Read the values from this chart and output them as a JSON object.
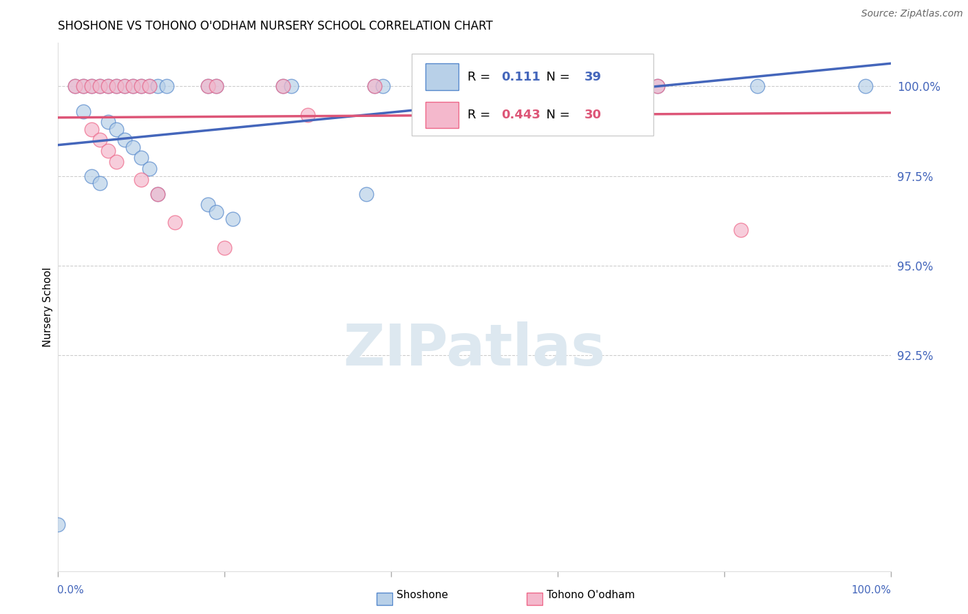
{
  "title": "SHOSHONE VS TOHONO O'ODHAM NURSERY SCHOOL CORRELATION CHART",
  "source": "Source: ZipAtlas.com",
  "ylabel": "Nursery School",
  "ylabel_right_labels": [
    "100.0%",
    "97.5%",
    "95.0%",
    "92.5%"
  ],
  "ylabel_right_values": [
    1.0,
    0.975,
    0.95,
    0.925
  ],
  "xmin": 0.0,
  "xmax": 1.0,
  "ymin": 0.865,
  "ymax": 1.012,
  "legend_blue_R": "0.111",
  "legend_blue_N": "39",
  "legend_pink_R": "0.443",
  "legend_pink_N": "30",
  "shoshone_color": "#b8d0e8",
  "tohono_color": "#f4b8cc",
  "shoshone_edge": "#5588cc",
  "tohono_edge": "#ee6688",
  "trendline_blue": "#4466bb",
  "trendline_pink": "#dd5577",
  "watermark": "ZIPatlas",
  "shoshone_points": [
    [
      0.02,
      1.0
    ],
    [
      0.03,
      1.0
    ],
    [
      0.04,
      1.0
    ],
    [
      0.05,
      1.0
    ],
    [
      0.06,
      1.0
    ],
    [
      0.07,
      1.0
    ],
    [
      0.08,
      1.0
    ],
    [
      0.09,
      1.0
    ],
    [
      0.1,
      1.0
    ],
    [
      0.11,
      1.0
    ],
    [
      0.12,
      1.0
    ],
    [
      0.13,
      1.0
    ],
    [
      0.18,
      1.0
    ],
    [
      0.19,
      1.0
    ],
    [
      0.27,
      1.0
    ],
    [
      0.28,
      1.0
    ],
    [
      0.38,
      1.0
    ],
    [
      0.39,
      1.0
    ],
    [
      0.53,
      1.0
    ],
    [
      0.65,
      1.0
    ],
    [
      0.66,
      1.0
    ],
    [
      0.72,
      1.0
    ],
    [
      0.84,
      1.0
    ],
    [
      0.97,
      1.0
    ],
    [
      0.03,
      0.993
    ],
    [
      0.06,
      0.99
    ],
    [
      0.07,
      0.988
    ],
    [
      0.08,
      0.985
    ],
    [
      0.09,
      0.983
    ],
    [
      0.1,
      0.98
    ],
    [
      0.11,
      0.977
    ],
    [
      0.04,
      0.975
    ],
    [
      0.05,
      0.973
    ],
    [
      0.12,
      0.97
    ],
    [
      0.18,
      0.967
    ],
    [
      0.19,
      0.965
    ],
    [
      0.21,
      0.963
    ],
    [
      0.37,
      0.97
    ],
    [
      0.0,
      0.878
    ]
  ],
  "tohono_points": [
    [
      0.02,
      1.0
    ],
    [
      0.03,
      1.0
    ],
    [
      0.04,
      1.0
    ],
    [
      0.05,
      1.0
    ],
    [
      0.06,
      1.0
    ],
    [
      0.07,
      1.0
    ],
    [
      0.08,
      1.0
    ],
    [
      0.09,
      1.0
    ],
    [
      0.1,
      1.0
    ],
    [
      0.11,
      1.0
    ],
    [
      0.18,
      1.0
    ],
    [
      0.19,
      1.0
    ],
    [
      0.27,
      1.0
    ],
    [
      0.38,
      1.0
    ],
    [
      0.53,
      1.0
    ],
    [
      0.54,
      1.0
    ],
    [
      0.65,
      1.0
    ],
    [
      0.66,
      1.0
    ],
    [
      0.67,
      1.0
    ],
    [
      0.72,
      1.0
    ],
    [
      0.3,
      0.992
    ],
    [
      0.04,
      0.988
    ],
    [
      0.05,
      0.985
    ],
    [
      0.06,
      0.982
    ],
    [
      0.07,
      0.979
    ],
    [
      0.1,
      0.974
    ],
    [
      0.12,
      0.97
    ],
    [
      0.14,
      0.962
    ],
    [
      0.2,
      0.955
    ],
    [
      0.82,
      0.96
    ]
  ]
}
